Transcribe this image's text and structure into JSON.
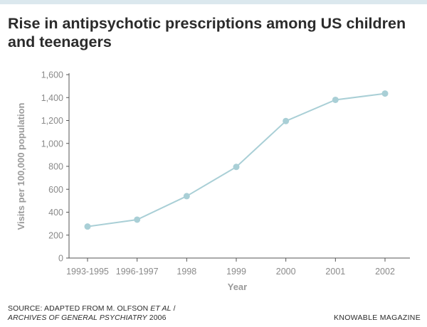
{
  "title": "Rise in antipsychotic prescriptions among US children and teenagers",
  "footer": {
    "source_prefix": "SOURCE: ADAPTED FROM M. OLFSON ",
    "source_etal": "ET AL",
    "source_sep": " /",
    "source_journal": "ARCHIVES OF GENERAL PSYCHIATRY",
    "source_year": " 2006",
    "brand": "KNOWABLE MAGAZINE"
  },
  "colors": {
    "line": "#a9cfd6",
    "point": "#a9cfd6",
    "axis": "#555555",
    "text": "#2b2b2b"
  },
  "chart_data": {
    "type": "line",
    "title": "Rise in antipsychotic prescriptions among US children and teenagers",
    "xlabel": "Year",
    "ylabel": "Visits per 100,000 population",
    "categories": [
      "1993-1995",
      "1996-1997",
      "1998",
      "1999",
      "2000",
      "2001",
      "2002"
    ],
    "values": [
      275,
      335,
      540,
      795,
      1195,
      1380,
      1435
    ],
    "ylim": [
      0,
      1600
    ],
    "yticks": [
      0,
      200,
      400,
      600,
      800,
      1000,
      1200,
      1400,
      1600
    ],
    "ytick_labels": [
      "0",
      "200",
      "400",
      "600",
      "800",
      "1,000",
      "1,200",
      "1,400",
      "1,600"
    ],
    "grid": false,
    "legend": "none"
  }
}
